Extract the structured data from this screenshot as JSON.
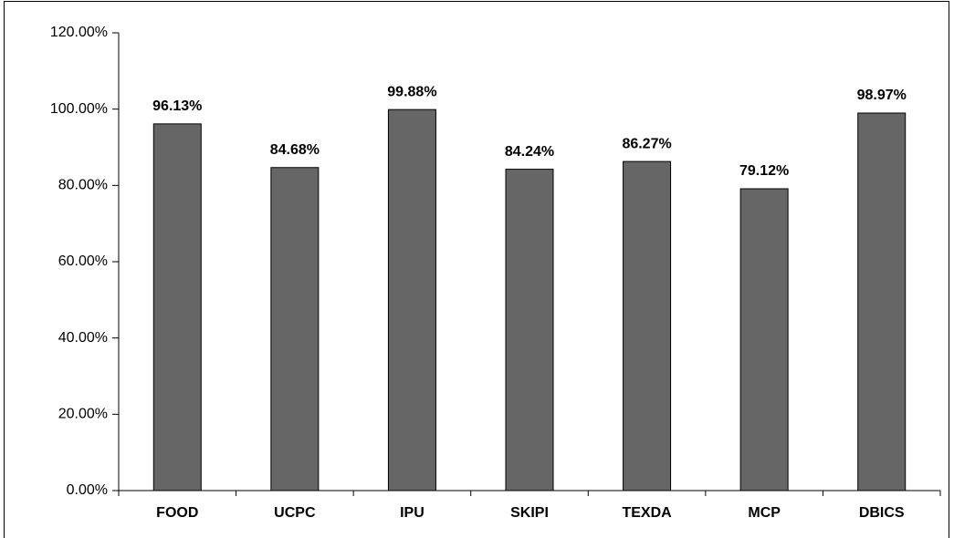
{
  "chart_data": {
    "type": "bar",
    "categories": [
      "FOOD",
      "UCPC",
      "IPU",
      "SKIPI",
      "TEXDA",
      "MCP",
      "DBICS"
    ],
    "values": [
      96.13,
      84.68,
      99.88,
      84.24,
      86.27,
      79.12,
      98.97
    ],
    "value_labels": [
      "96.13%",
      "84.68%",
      "99.88%",
      "84.24%",
      "86.27%",
      "79.12%",
      "98.97%"
    ],
    "color": "#666666",
    "ylim": [
      0,
      120
    ],
    "yticks": [
      {
        "value": 0,
        "label": "0.00%"
      },
      {
        "value": 20,
        "label": "20.00%"
      },
      {
        "value": 40,
        "label": "40.00%"
      },
      {
        "value": 60,
        "label": "60.00%"
      },
      {
        "value": 80,
        "label": "80.00%"
      },
      {
        "value": 100,
        "label": "100.00%"
      },
      {
        "value": 120,
        "label": "120.00%"
      }
    ],
    "grid": false
  }
}
